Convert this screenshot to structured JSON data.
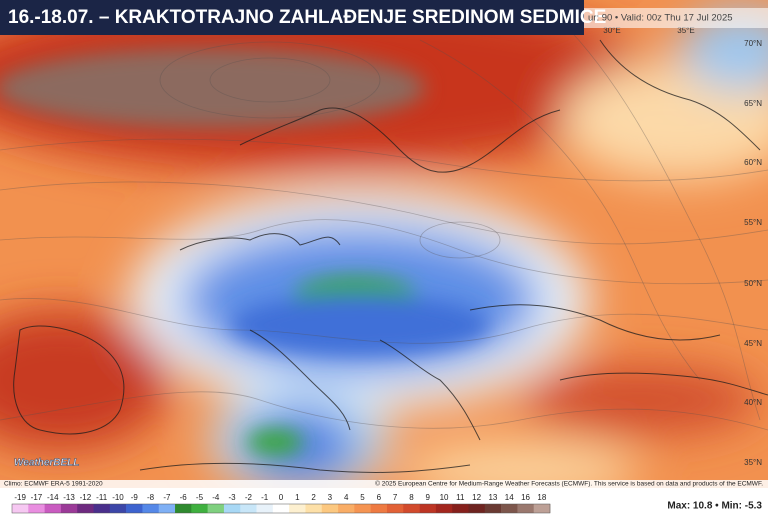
{
  "title": "16.-18.07. – KRAKTOTRAJNO ZAHLAĐENJE SREDINOM SEDMICE",
  "header_info": "ur: 90 • Valid: 00z Thu 17 Jul 2025",
  "lat_labels": [
    "70°N",
    "65°N",
    "60°N",
    "55°N",
    "50°N",
    "45°N",
    "40°N",
    "35°N"
  ],
  "lon_labels": [
    "30°E",
    "35°E"
  ],
  "logo": "WeatherBELL",
  "climo": "Climo: ECMWF ERA-5 1991-2020",
  "credit": "© 2025 European Centre for Medium-Range Weather Forecasts (ECMWF). This service is based on data and products of the ECMWF.",
  "colorbar": {
    "labels": [
      -19,
      -17,
      -14,
      -13,
      -12,
      -11,
      -10,
      -9,
      -8,
      -7,
      -6,
      -5,
      -4,
      -3,
      -2,
      -1,
      0,
      1,
      2,
      3,
      4,
      5,
      6,
      7,
      8,
      9,
      10,
      11,
      12,
      13,
      14,
      16,
      18
    ],
    "colors": [
      "#f6c8f2",
      "#e98ee0",
      "#c95bc0",
      "#9b3a98",
      "#6e2a80",
      "#4a2f8c",
      "#3c46a8",
      "#3d63cf",
      "#5588e8",
      "#7fb0f5",
      "#2f8a2f",
      "#3fb03f",
      "#7fd07f",
      "#a8d8f5",
      "#c8e6f8",
      "#e8f2fa",
      "#ffffff",
      "#fdf0d0",
      "#fde0a8",
      "#fcc880",
      "#f9ad66",
      "#f59452",
      "#ee7a42",
      "#e26136",
      "#d24a2c",
      "#bd3524",
      "#a3261e",
      "#86201c",
      "#6e2420",
      "#6a3a32",
      "#7d564c",
      "#9a786e",
      "#bda096"
    ]
  },
  "stats": "Max: 10.8 • Min: -5.3"
}
